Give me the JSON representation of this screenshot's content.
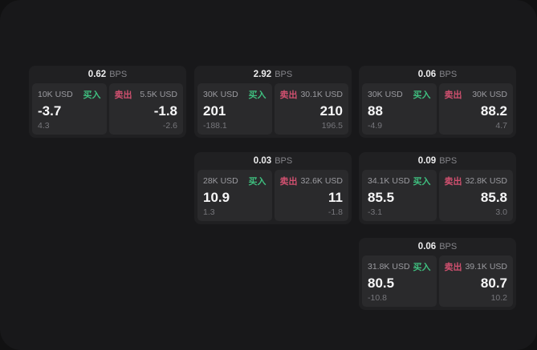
{
  "labels": {
    "buy": "买入",
    "sell": "卖出",
    "bps_unit": "BPS"
  },
  "colors": {
    "buy_accent": "#3fbf7f",
    "sell_accent": "#d0506f",
    "surface": "#18181a",
    "card": "#202022",
    "panel": "#2a2a2c"
  },
  "cards": [
    {
      "bps": "0.62",
      "buy": {
        "size": "10K USD",
        "price": "-3.7",
        "sub": "4.3"
      },
      "sell": {
        "size": "5.5K USD",
        "price": "-1.8",
        "sub": "-2.6"
      }
    },
    {
      "bps": "2.92",
      "buy": {
        "size": "30K USD",
        "price": "201",
        "sub": "-188.1"
      },
      "sell": {
        "size": "30.1K USD",
        "price": "210",
        "sub": "196.5"
      }
    },
    {
      "bps": "0.06",
      "buy": {
        "size": "30K USD",
        "price": "88",
        "sub": "-4.9"
      },
      "sell": {
        "size": "30K USD",
        "price": "88.2",
        "sub": "4.7"
      }
    },
    {
      "bps": "0.03",
      "buy": {
        "size": "28K USD",
        "price": "10.9",
        "sub": "1.3"
      },
      "sell": {
        "size": "32.6K USD",
        "price": "11",
        "sub": "-1.8"
      }
    },
    {
      "bps": "0.09",
      "buy": {
        "size": "34.1K USD",
        "price": "85.5",
        "sub": "-3.1"
      },
      "sell": {
        "size": "32.8K USD",
        "price": "85.8",
        "sub": "3.0"
      }
    },
    {
      "bps": "0.06",
      "buy": {
        "size": "31.8K USD",
        "price": "80.5",
        "sub": "-10.8"
      },
      "sell": {
        "size": "39.1K USD",
        "price": "80.7",
        "sub": "10.2"
      }
    }
  ]
}
